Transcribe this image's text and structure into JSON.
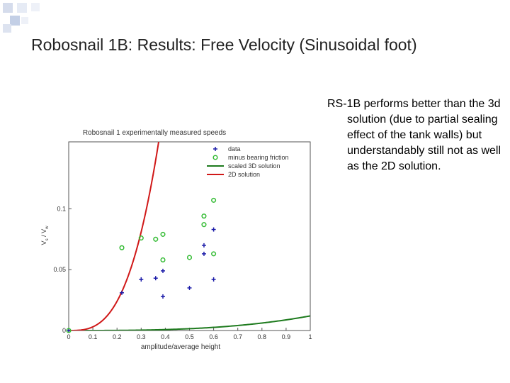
{
  "slide": {
    "title": "Robosnail 1B: Results:  Free Velocity (Sinusoidal foot)",
    "bullet": "RS-1B performs better than the 3d solution (due to partial sealing effect of the tank walls) but understandably still not as well as the 2D solution.",
    "accent_color": "#c3cfe6"
  },
  "chart_data": {
    "type": "scatter",
    "title": "Robosnail 1 experimentally measured speeds",
    "xlabel": "amplitude/average height",
    "ylabel": "V_s / V_w",
    "xlim": [
      0,
      1
    ],
    "ylim": [
      0,
      0.155
    ],
    "xticks": [
      "0",
      "0.1",
      "0.2",
      "0.3",
      "0.4",
      "0.5",
      "0.6",
      "0.7",
      "0.8",
      "0.9",
      "1"
    ],
    "yticks": [
      {
        "v": 0.05,
        "label": "0.05"
      },
      {
        "v": 0.1,
        "label": "0.1"
      }
    ],
    "legend_position": "top-right",
    "series": [
      {
        "name": "data",
        "kind": "plus",
        "color": "#1a1aa8",
        "points": [
          [
            0,
            0
          ],
          [
            0.22,
            0.031
          ],
          [
            0.3,
            0.042
          ],
          [
            0.36,
            0.043
          ],
          [
            0.39,
            0.049
          ],
          [
            0.39,
            0.028
          ],
          [
            0.5,
            0.035
          ],
          [
            0.56,
            0.07
          ],
          [
            0.56,
            0.063
          ],
          [
            0.6,
            0.083
          ],
          [
            0.6,
            0.042
          ]
        ]
      },
      {
        "name": "minus bearing friction",
        "kind": "circle",
        "color": "#33bb33",
        "points": [
          [
            0,
            0
          ],
          [
            0.22,
            0.068
          ],
          [
            0.3,
            0.076
          ],
          [
            0.36,
            0.075
          ],
          [
            0.39,
            0.079
          ],
          [
            0.39,
            0.058
          ],
          [
            0.5,
            0.06
          ],
          [
            0.56,
            0.094
          ],
          [
            0.56,
            0.087
          ],
          [
            0.6,
            0.107
          ],
          [
            0.6,
            0.063
          ]
        ]
      },
      {
        "name": "scaled 3D solution",
        "kind": "line",
        "color": "#1d7a1d",
        "model": "cubic",
        "coef": 0.012
      },
      {
        "name": "2D solution",
        "kind": "line",
        "color": "#d01818",
        "model": "cubic",
        "coef": 3.0
      }
    ]
  }
}
